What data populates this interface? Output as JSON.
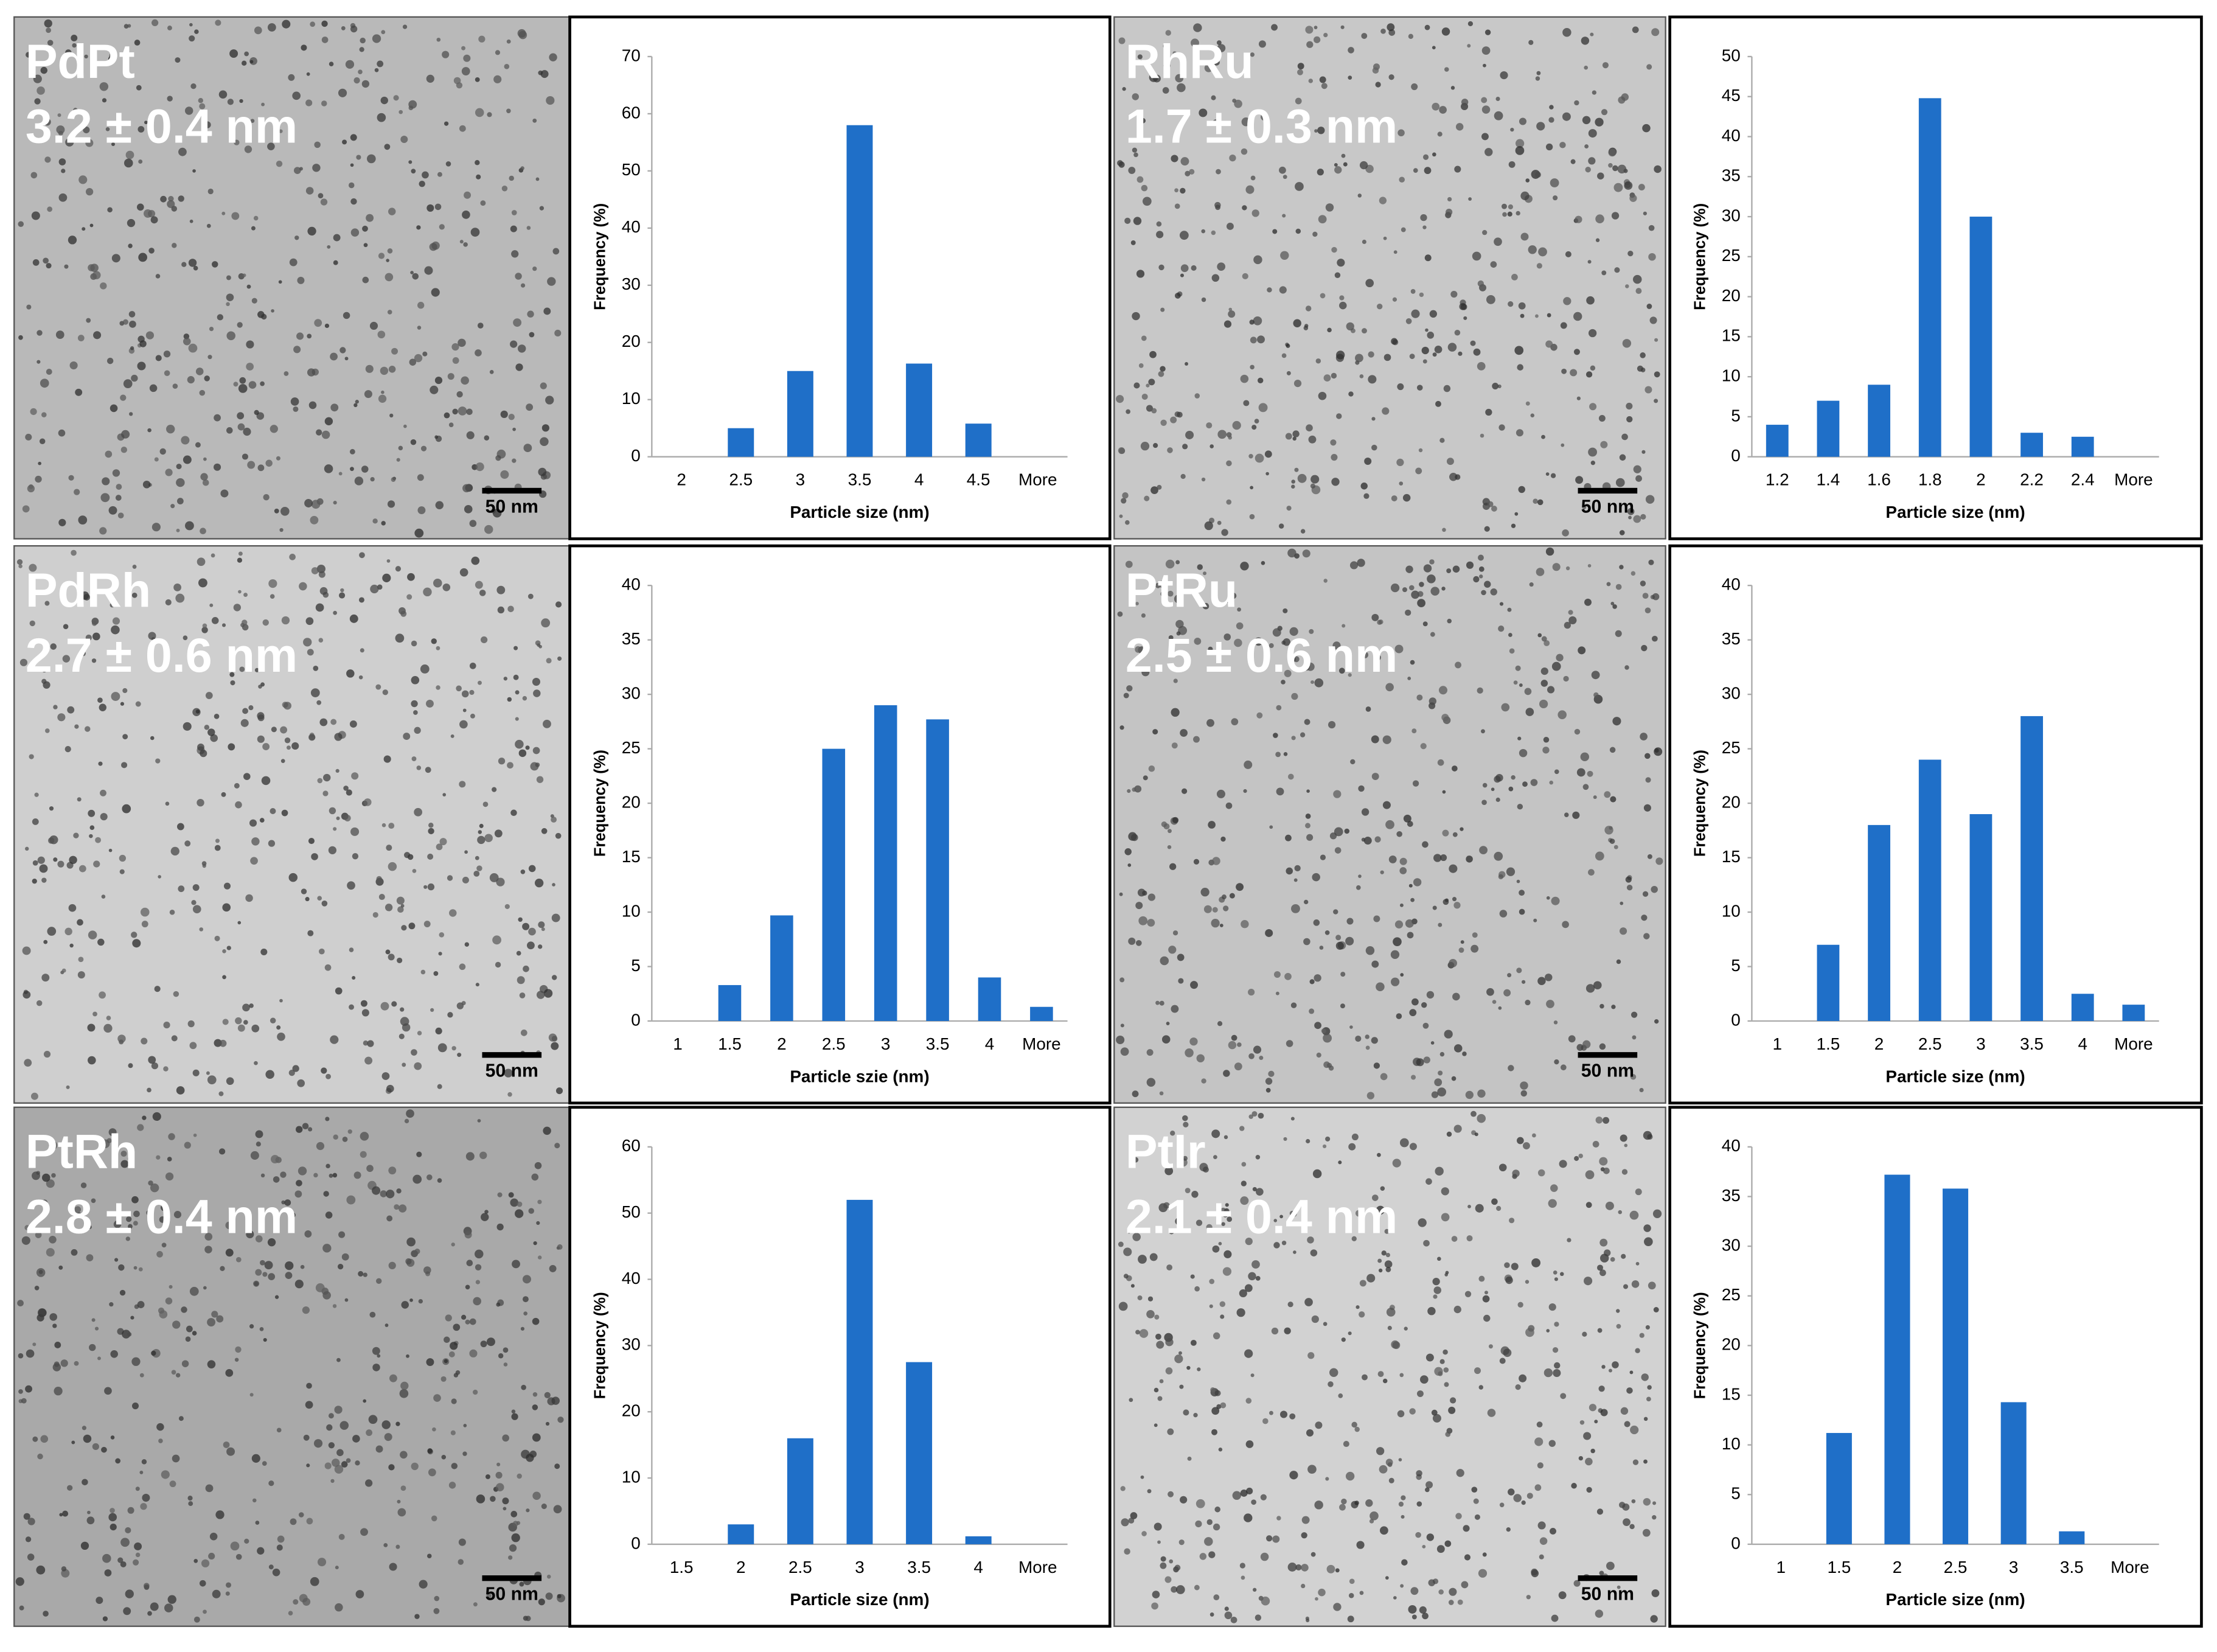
{
  "panels": [
    {
      "name": "PdPt",
      "size": "3.2 ± 0.4 nm",
      "scale_bar": "50 nm"
    },
    {
      "name": "RhRu",
      "size": "1.7 ± 0.3 nm",
      "scale_bar": "50 nm"
    },
    {
      "name": "PdRh",
      "size": "2.7 ± 0.6 nm",
      "scale_bar": "50 nm"
    },
    {
      "name": "PtRu",
      "size": "2.5 ± 0.6 nm",
      "scale_bar": "50 nm"
    },
    {
      "name": "PtRh",
      "size": "2.8 ± 0.4 nm",
      "scale_bar": "50 nm"
    },
    {
      "name": "PtIr",
      "size": "2.1 ± 0.4 nm",
      "scale_bar": "50 nm"
    }
  ],
  "chart_data": [
    {
      "type": "bar",
      "x_label": "Particle size (nm)",
      "y_label": "Frequency (%)",
      "color": "#1f6fc8",
      "categories": [
        "2",
        "2.5",
        "3",
        "3.5",
        "4",
        "4.5",
        "More"
      ],
      "values": [
        0,
        5,
        15,
        58,
        16.3,
        5.8,
        0
      ],
      "ylim": [
        0,
        70
      ],
      "yticks": [
        0,
        10,
        20,
        30,
        40,
        50,
        60,
        70
      ]
    },
    {
      "type": "bar",
      "x_label": "Particle size (nm)",
      "y_label": "Frequency (%)",
      "color": "#1f6fc8",
      "categories": [
        "1.2",
        "1.4",
        "1.6",
        "1.8",
        "2",
        "2.2",
        "2.4",
        "More"
      ],
      "values": [
        4,
        7,
        9,
        44.8,
        30,
        3,
        2.5,
        0
      ],
      "ylim": [
        0,
        50
      ],
      "yticks": [
        0,
        5,
        10,
        15,
        20,
        25,
        30,
        35,
        40,
        45,
        50
      ]
    },
    {
      "type": "bar",
      "x_label": "Particle szie (nm)",
      "y_label": "Frequency (%)",
      "color": "#1f6fc8",
      "categories": [
        "1",
        "1.5",
        "2",
        "2.5",
        "3",
        "3.5",
        "4",
        "More"
      ],
      "values": [
        0,
        3.3,
        9.7,
        25,
        29,
        27.7,
        4,
        1.3
      ],
      "ylim": [
        0,
        40
      ],
      "yticks": [
        0,
        5,
        10,
        15,
        20,
        25,
        30,
        35,
        40
      ]
    },
    {
      "type": "bar",
      "x_label": "Particle size (nm)",
      "y_label": "Frequency (%)",
      "color": "#1f6fc8",
      "categories": [
        "1",
        "1.5",
        "2",
        "2.5",
        "3",
        "3.5",
        "4",
        "More"
      ],
      "values": [
        0,
        7,
        18,
        24,
        19,
        28,
        2.5,
        1.5
      ],
      "ylim": [
        0,
        40
      ],
      "yticks": [
        0,
        5,
        10,
        15,
        20,
        25,
        30,
        35,
        40
      ]
    },
    {
      "type": "bar",
      "x_label": "Particle size (nm)",
      "y_label": "Frequency (%)",
      "color": "#1f6fc8",
      "categories": [
        "1.5",
        "2",
        "2.5",
        "3",
        "3.5",
        "4",
        "More"
      ],
      "values": [
        0,
        3,
        16,
        52,
        27.5,
        1.2,
        0
      ],
      "ylim": [
        0,
        60
      ],
      "yticks": [
        0,
        10,
        20,
        30,
        40,
        50,
        60
      ]
    },
    {
      "type": "bar",
      "x_label": "Particle size (nm)",
      "y_label": "Frequency (%)",
      "color": "#1f6fc8",
      "categories": [
        "1",
        "1.5",
        "2",
        "2.5",
        "3",
        "3.5",
        "More"
      ],
      "values": [
        0,
        11.2,
        37.2,
        35.8,
        14.3,
        1.3,
        0
      ],
      "ylim": [
        0,
        40
      ],
      "yticks": [
        0,
        5,
        10,
        15,
        20,
        25,
        30,
        35,
        40
      ]
    }
  ]
}
